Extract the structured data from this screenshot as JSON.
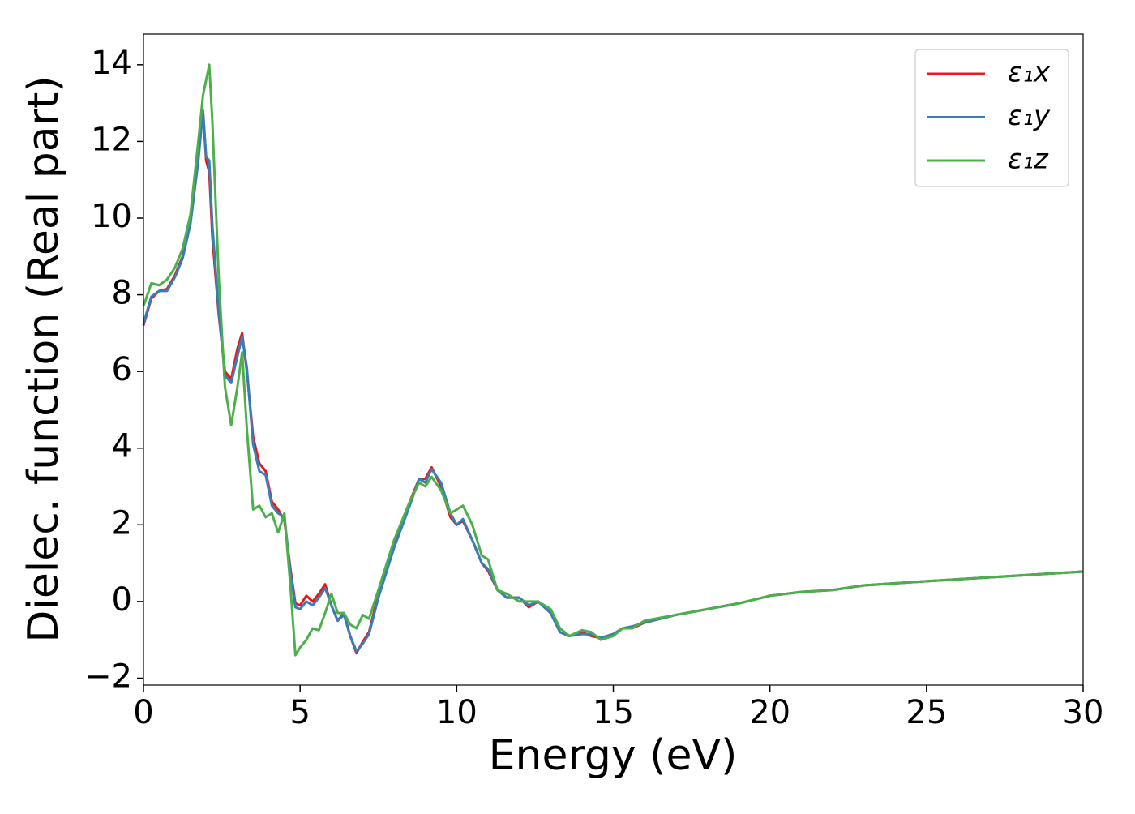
{
  "chart_data": {
    "type": "line",
    "xlabel": "Energy (eV)",
    "ylabel": "Dielec. function (Real part)",
    "xlim": [
      0,
      30
    ],
    "ylim": [
      -2.18,
      14.8
    ],
    "xticks": [
      0,
      5,
      10,
      15,
      20,
      25,
      30
    ],
    "yticks": [
      {
        "value": -2,
        "label": "−2"
      },
      0,
      2,
      4,
      6,
      8,
      10,
      12,
      14
    ],
    "legend": "upper right",
    "grid": false,
    "x": [
      0,
      0.25,
      0.5,
      0.75,
      1.0,
      1.25,
      1.5,
      1.75,
      1.9,
      2.0,
      2.1,
      2.2,
      2.4,
      2.6,
      2.8,
      3.0,
      3.15,
      3.3,
      3.5,
      3.7,
      3.9,
      4.1,
      4.3,
      4.5,
      4.7,
      4.85,
      5.0,
      5.2,
      5.4,
      5.6,
      5.8,
      6.0,
      6.2,
      6.4,
      6.6,
      6.8,
      7.0,
      7.2,
      7.5,
      8.0,
      8.5,
      8.8,
      9.0,
      9.2,
      9.5,
      9.8,
      10.0,
      10.2,
      10.5,
      10.8,
      11.0,
      11.3,
      11.6,
      12.0,
      12.3,
      12.6,
      13.0,
      13.3,
      13.6,
      14.0,
      14.3,
      14.6,
      15.0,
      15.3,
      15.6,
      16,
      17,
      18,
      19,
      20,
      21,
      22,
      23,
      25,
      27,
      30
    ],
    "series": [
      {
        "name": "ε₁x",
        "color": "#e41a1c",
        "values": [
          7.2,
          7.9,
          8.1,
          8.15,
          8.5,
          9.0,
          9.9,
          11.6,
          12.8,
          11.5,
          11.2,
          9.5,
          7.5,
          6.0,
          5.8,
          6.6,
          7.0,
          6.0,
          4.3,
          3.6,
          3.4,
          2.6,
          2.4,
          2.1,
          0.8,
          -0.05,
          -0.1,
          0.15,
          0.0,
          0.2,
          0.45,
          -0.1,
          -0.5,
          -0.3,
          -0.9,
          -1.35,
          -1.05,
          -0.8,
          0.2,
          1.5,
          2.6,
          3.2,
          3.2,
          3.5,
          3.0,
          2.2,
          2.0,
          2.1,
          1.6,
          1.0,
          0.8,
          0.3,
          0.1,
          0.1,
          -0.15,
          0.0,
          -0.3,
          -0.8,
          -0.9,
          -0.8,
          -0.9,
          -0.95,
          -0.85,
          -0.7,
          -0.7,
          -0.55,
          -0.35,
          -0.2,
          -0.05,
          0.15,
          0.25,
          0.3,
          0.42,
          0.53,
          0.63,
          0.78
        ]
      },
      {
        "name": "ε₁y",
        "color": "#377eb8",
        "values": [
          7.25,
          7.95,
          8.1,
          8.1,
          8.45,
          8.95,
          9.85,
          11.5,
          12.8,
          11.6,
          11.5,
          9.8,
          7.6,
          5.9,
          5.7,
          6.4,
          6.9,
          6.1,
          4.1,
          3.4,
          3.3,
          2.5,
          2.3,
          2.2,
          0.7,
          -0.15,
          -0.2,
          0.0,
          -0.1,
          0.1,
          0.35,
          -0.1,
          -0.5,
          -0.35,
          -0.9,
          -1.3,
          -1.1,
          -0.85,
          0.1,
          1.4,
          2.5,
          3.2,
          3.1,
          3.45,
          3.1,
          2.3,
          2.0,
          2.15,
          1.6,
          1.0,
          0.85,
          0.3,
          0.1,
          0.1,
          -0.1,
          0.0,
          -0.3,
          -0.8,
          -0.9,
          -0.85,
          -0.85,
          -0.95,
          -0.85,
          -0.7,
          -0.65,
          -0.55,
          -0.35,
          -0.2,
          -0.05,
          0.15,
          0.25,
          0.3,
          0.42,
          0.53,
          0.63,
          0.78
        ]
      },
      {
        "name": "ε₁z",
        "color": "#4daf4a",
        "values": [
          7.7,
          8.3,
          8.25,
          8.4,
          8.7,
          9.2,
          10.1,
          12.0,
          13.2,
          13.6,
          14.0,
          12.5,
          8.5,
          5.6,
          4.6,
          5.6,
          6.5,
          4.5,
          2.4,
          2.5,
          2.2,
          2.3,
          1.8,
          2.3,
          0.3,
          -1.4,
          -1.2,
          -1.0,
          -0.7,
          -0.75,
          -0.3,
          0.2,
          -0.3,
          -0.3,
          -0.6,
          -0.7,
          -0.35,
          -0.45,
          0.3,
          1.6,
          2.6,
          3.1,
          3.0,
          3.25,
          2.9,
          2.3,
          2.4,
          2.5,
          2.0,
          1.2,
          1.1,
          0.3,
          0.2,
          0.0,
          0.0,
          0.0,
          -0.2,
          -0.7,
          -0.9,
          -0.75,
          -0.8,
          -1.0,
          -0.9,
          -0.7,
          -0.7,
          -0.5,
          -0.35,
          -0.2,
          -0.05,
          0.15,
          0.25,
          0.3,
          0.42,
          0.53,
          0.63,
          0.78
        ]
      }
    ]
  }
}
